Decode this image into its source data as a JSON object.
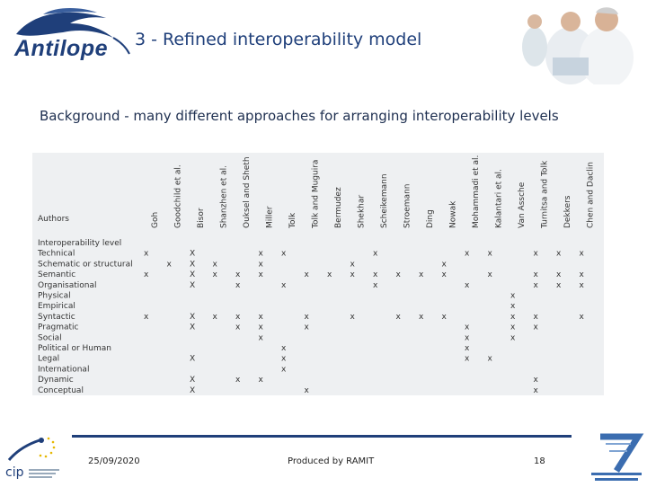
{
  "logo": {
    "text": "Antilope"
  },
  "slide": {
    "title": "3 - Refined interoperability model",
    "subtitle": "Background - many different approaches for arranging interoperability levels"
  },
  "table": {
    "corner_label": "Authors",
    "columns": [
      "Goh",
      "Goodchild et al.",
      "Bisor",
      "Shanzhen et al.",
      "Ouksel and Sheth",
      "Miller",
      "Tolk",
      "Tolk and Muguira",
      "Bermudez",
      "Shekhar",
      "Scheikemann",
      "Stroemann",
      "Ding",
      "Nowak",
      "Mohammadi et al.",
      "Kalantari et al.",
      "Van Assche",
      "Turnitsa and Tolk",
      "Dekkers",
      "Chen and Daclin"
    ],
    "rows": [
      {
        "label": "Interoperability level",
        "marks": [
          "",
          "",
          "",
          "",
          "",
          "",
          "",
          "",
          "",
          "",
          "",
          "",
          "",
          "",
          "",
          "",
          "",
          "",
          "",
          ""
        ]
      },
      {
        "label": "Technical",
        "marks": [
          "x",
          "",
          "X",
          "",
          "",
          "x",
          "x",
          "",
          "",
          "",
          "x",
          "",
          "",
          "",
          "x",
          "x",
          "",
          "x",
          "x",
          "x"
        ]
      },
      {
        "label": "Schematic or structural",
        "marks": [
          "",
          "x",
          "X",
          "x",
          "",
          "x",
          "",
          "",
          "",
          "x",
          "",
          "",
          "",
          "x",
          "",
          "",
          "",
          "",
          "",
          ""
        ]
      },
      {
        "label": "Semantic",
        "marks": [
          "x",
          "",
          "X",
          "x",
          "x",
          "x",
          "",
          "x",
          "x",
          "x",
          "x",
          "x",
          "x",
          "x",
          "",
          "x",
          "",
          "x",
          "x",
          "x"
        ]
      },
      {
        "label": "Organisational",
        "marks": [
          "",
          "",
          "X",
          "",
          "x",
          "",
          "x",
          "",
          "",
          "",
          "x",
          "",
          "",
          "",
          "x",
          "",
          "",
          "x",
          "x",
          "x"
        ]
      },
      {
        "label": "Physical",
        "marks": [
          "",
          "",
          "",
          "",
          "",
          "",
          "",
          "",
          "",
          "",
          "",
          "",
          "",
          "",
          "",
          "",
          "x",
          "",
          "",
          ""
        ]
      },
      {
        "label": "Empirical",
        "marks": [
          "",
          "",
          "",
          "",
          "",
          "",
          "",
          "",
          "",
          "",
          "",
          "",
          "",
          "",
          "",
          "",
          "x",
          "",
          "",
          ""
        ]
      },
      {
        "label": "Syntactic",
        "marks": [
          "x",
          "",
          "X",
          "x",
          "x",
          "x",
          "",
          "x",
          "",
          "x",
          "",
          "x",
          "x",
          "x",
          "",
          "",
          "x",
          "x",
          "",
          "x"
        ]
      },
      {
        "label": "Pragmatic",
        "marks": [
          "",
          "",
          "X",
          "",
          "x",
          "x",
          "",
          "x",
          "",
          "",
          "",
          "",
          "",
          "",
          "x",
          "",
          "x",
          "x",
          "",
          ""
        ]
      },
      {
        "label": "Social",
        "marks": [
          "",
          "",
          "",
          "",
          "",
          "x",
          "",
          "",
          "",
          "",
          "",
          "",
          "",
          "",
          "x",
          "",
          "x",
          "",
          "",
          ""
        ]
      },
      {
        "label": "Political or Human",
        "marks": [
          "",
          "",
          "",
          "",
          "",
          "",
          "x",
          "",
          "",
          "",
          "",
          "",
          "",
          "",
          "x",
          "",
          "",
          "",
          "",
          ""
        ]
      },
      {
        "label": "Legal",
        "marks": [
          "",
          "",
          "X",
          "",
          "",
          "",
          "x",
          "",
          "",
          "",
          "",
          "",
          "",
          "",
          "x",
          "x",
          "",
          "",
          "",
          ""
        ]
      },
      {
        "label": "International",
        "marks": [
          "",
          "",
          "",
          "",
          "",
          "",
          "x",
          "",
          "",
          "",
          "",
          "",
          "",
          "",
          "",
          "",
          "",
          "",
          "",
          ""
        ]
      },
      {
        "label": "Dynamic",
        "marks": [
          "",
          "",
          "X",
          "",
          "x",
          "x",
          "",
          "",
          "",
          "",
          "",
          "",
          "",
          "",
          "",
          "",
          "",
          "x",
          "",
          ""
        ]
      },
      {
        "label": "Conceptual",
        "marks": [
          "",
          "",
          "X",
          "",
          "",
          "",
          "",
          "x",
          "",
          "",
          "",
          "",
          "",
          "",
          "",
          "",
          "",
          "x",
          "",
          ""
        ]
      }
    ]
  },
  "footer": {
    "date": "25/09/2020",
    "produced_by": "Produced by RAMIT",
    "page_number": "18"
  },
  "colors": {
    "brand": "#1f3f7a",
    "table_bg": "#eef0f2"
  },
  "icons": {
    "logo": "antelope-logo-icon",
    "photo": "doctors-photo",
    "left_footer": "cip-logo-icon",
    "right_footer": "fp7-logo-icon"
  }
}
